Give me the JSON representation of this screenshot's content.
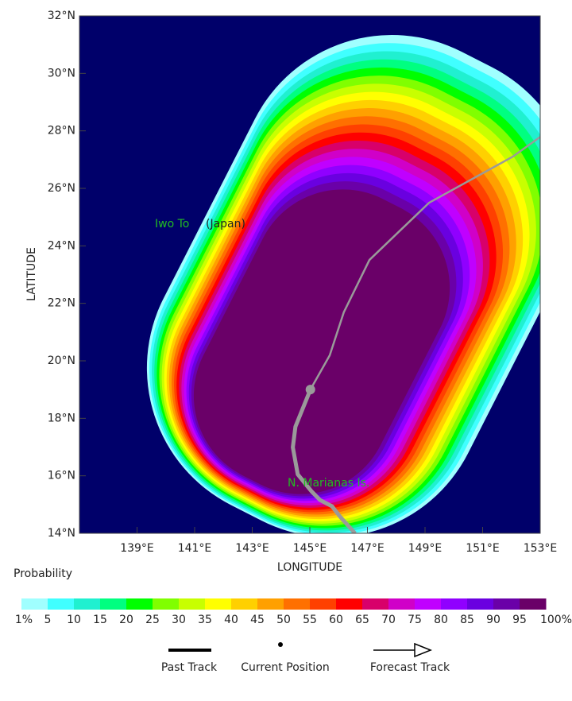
{
  "chart_data": {
    "type": "probability_map",
    "xlabel": "LONGITUDE",
    "ylabel": "LATITUDE",
    "xlim": [
      137,
      153
    ],
    "ylim": [
      14,
      32
    ],
    "xticks": [
      {
        "value": 139,
        "label": "139°E"
      },
      {
        "value": 141,
        "label": "141°E"
      },
      {
        "value": 143,
        "label": "143°E"
      },
      {
        "value": 145,
        "label": "145°E"
      },
      {
        "value": 147,
        "label": "147°E"
      },
      {
        "value": 149,
        "label": "149°E"
      },
      {
        "value": 151,
        "label": "151°E"
      },
      {
        "value": 153,
        "label": "153°E"
      }
    ],
    "yticks": [
      {
        "value": 14,
        "label": "14°N"
      },
      {
        "value": 16,
        "label": "16°N"
      },
      {
        "value": 18,
        "label": "18°N"
      },
      {
        "value": 20,
        "label": "20°N"
      },
      {
        "value": 22,
        "label": "22°N"
      },
      {
        "value": 24,
        "label": "24°N"
      },
      {
        "value": 26,
        "label": "26°N"
      },
      {
        "value": 28,
        "label": "28°N"
      },
      {
        "value": 30,
        "label": "30°N"
      },
      {
        "value": 32,
        "label": "32°N"
      }
    ],
    "background_color": "#00006a",
    "track_color": "#9a9a9a",
    "annotations": [
      "Iwo To",
      "(Japan)",
      "N. Marianas Is."
    ],
    "past_track": {
      "name": "Past Track",
      "lon": [
        145.02,
        144.5,
        144.41,
        144.58,
        145.05,
        145.35,
        145.77,
        146.05,
        146.57
      ],
      "lat": [
        19.0,
        17.71,
        16.99,
        16.05,
        15.47,
        15.16,
        14.94,
        14.58,
        14.0
      ]
    },
    "current_position": {
      "name": "Current Position",
      "lon": 145.02,
      "lat": 19.0
    },
    "forecast_track": {
      "name": "Forecast Track",
      "lon": [
        145.02,
        145.69,
        146.18,
        147.07,
        149.14,
        152.04,
        153.0
      ],
      "lat": [
        19.0,
        20.19,
        21.69,
        23.51,
        25.5,
        27.1,
        27.79
      ]
    },
    "colorbar": {
      "title": "Probability",
      "ticks": [
        {
          "value": 1,
          "label": "1%"
        },
        5,
        10,
        15,
        20,
        25,
        30,
        35,
        40,
        45,
        50,
        55,
        60,
        65,
        70,
        75,
        80,
        85,
        90,
        95,
        {
          "value": 100,
          "label": "100%"
        }
      ],
      "colors": [
        "#a0ffff",
        "#40ffff",
        "#20f0d0",
        "#00ff80",
        "#00ff00",
        "#80ff00",
        "#c8ff00",
        "#ffff00",
        "#ffd000",
        "#ffa000",
        "#ff7000",
        "#ff4000",
        "#ff0000",
        "#d8006a",
        "#d000c8",
        "#c000ff",
        "#9000ff",
        "#6a00e0",
        "#6a00a8",
        "#6a0068"
      ]
    }
  }
}
